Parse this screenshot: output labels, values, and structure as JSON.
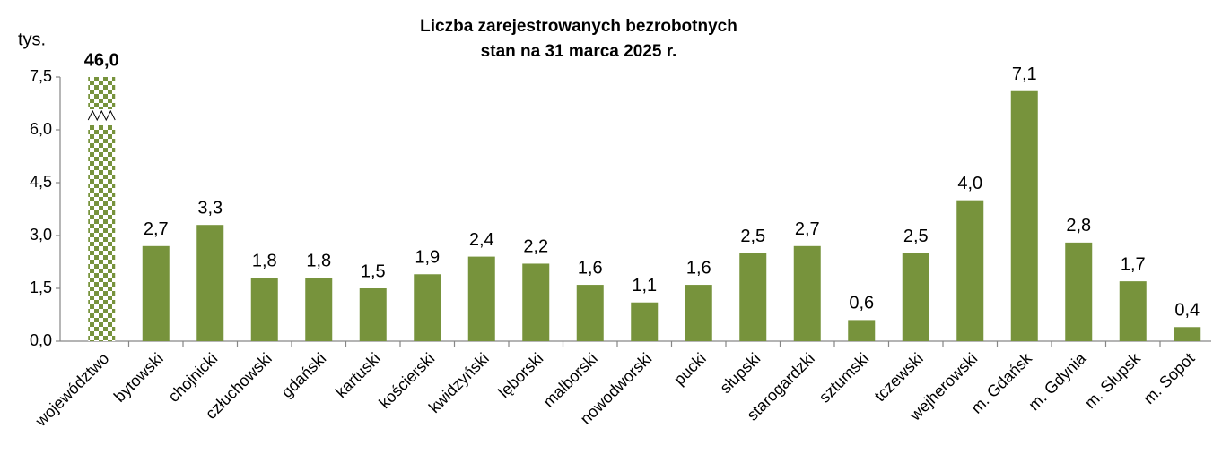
{
  "chart_data": {
    "type": "bar",
    "title": "Liczba zarejestrowanych bezrobotnych",
    "subtitle": "stan na 31 marca 2025 r.",
    "ylabel": "tys.",
    "categories": [
      "województwo",
      "bytowski",
      "chojnicki",
      "człuchowski",
      "gdański",
      "kartuski",
      "kościerski",
      "kwidzyński",
      "lęborski",
      "malborski",
      "nowodworski",
      "pucki",
      "słupski",
      "starogardzki",
      "sztumski",
      "tczewski",
      "wejherowski",
      "m. Gdańsk",
      "m. Gdynia",
      "m. Słupsk",
      "m. Sopot"
    ],
    "values": [
      46.0,
      2.7,
      3.3,
      1.8,
      1.8,
      1.5,
      1.9,
      2.4,
      2.2,
      1.6,
      1.1,
      1.6,
      2.5,
      2.7,
      0.6,
      2.5,
      4.0,
      7.1,
      2.8,
      1.7,
      0.4
    ],
    "value_labels": [
      "46,0",
      "2,7",
      "3,3",
      "1,8",
      "1,8",
      "1,5",
      "1,9",
      "2,4",
      "2,2",
      "1,6",
      "1,1",
      "1,6",
      "2,5",
      "2,7",
      "0,6",
      "2,5",
      "4,0",
      "7,1",
      "2,8",
      "1,7",
      "0,4"
    ],
    "color": "#77933c",
    "ylim": [
      0,
      7.5
    ],
    "yticks": [
      {
        "value": 0,
        "label": "0,0"
      },
      {
        "value": 1.5,
        "label": "1,5"
      },
      {
        "value": 3,
        "label": "3,0"
      },
      {
        "value": 4.5,
        "label": "4,5"
      },
      {
        "value": 6,
        "label": "6,0"
      },
      {
        "value": 7.5,
        "label": "7,5"
      }
    ],
    "grid": false
  }
}
